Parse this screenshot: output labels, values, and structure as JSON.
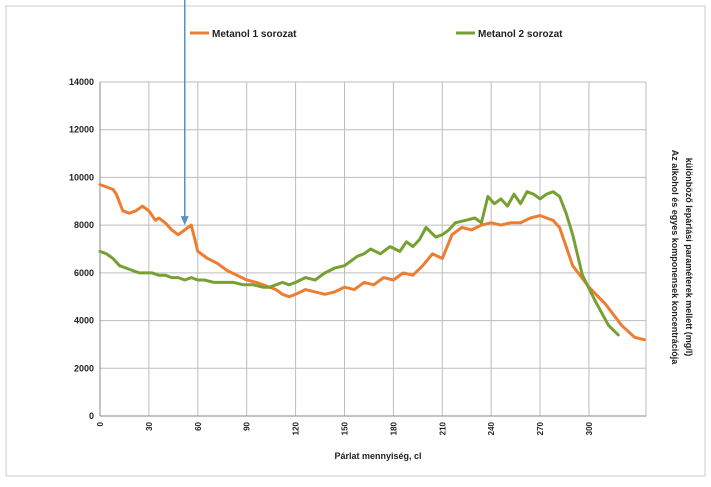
{
  "chart_data": {
    "type": "line",
    "xlabel": "Párlat mennyiség, cl",
    "ylabel": "Az alkohol és egyes komponensek koncentrációja különböző lepárlási paraméterek mellett (mg/l)",
    "ylabel_lines": [
      "Az alkohol és egyes komponensek koncentrációja",
      "különböző lepárlási paraméterek mellett (mg/l)"
    ],
    "xlim": [
      0,
      335
    ],
    "ylim": [
      0,
      14000
    ],
    "x_ticks": [
      0,
      30,
      60,
      90,
      120,
      150,
      180,
      210,
      240,
      270,
      300
    ],
    "y_ticks": [
      0,
      2000,
      4000,
      6000,
      8000,
      10000,
      12000,
      14000
    ],
    "grid": true,
    "legend_position": "top",
    "annotation": {
      "type": "arrow",
      "x": 52,
      "y": 8000
    },
    "colors": {
      "series1": "#ed7d31",
      "series2": "#77a033",
      "arrow": "#5b8fc9",
      "grid": "#bdbdbd"
    },
    "series": [
      {
        "name": "Metanol 1 sorozat",
        "x": [
          0,
          4,
          8,
          10,
          14,
          18,
          22,
          26,
          30,
          34,
          36,
          40,
          44,
          48,
          52,
          56,
          60,
          66,
          72,
          78,
          84,
          90,
          96,
          100,
          104,
          108,
          112,
          116,
          120,
          126,
          132,
          138,
          144,
          150,
          156,
          162,
          168,
          174,
          180,
          186,
          192,
          198,
          204,
          210,
          216,
          222,
          228,
          234,
          240,
          246,
          252,
          258,
          264,
          270,
          274,
          278,
          282,
          290,
          300,
          310,
          320,
          328,
          334
        ],
        "y": [
          9700,
          9600,
          9500,
          9300,
          8600,
          8500,
          8600,
          8800,
          8600,
          8200,
          8300,
          8100,
          7800,
          7600,
          7800,
          8000,
          6900,
          6600,
          6400,
          6100,
          5900,
          5700,
          5600,
          5500,
          5400,
          5300,
          5100,
          5000,
          5100,
          5300,
          5200,
          5100,
          5200,
          5400,
          5300,
          5600,
          5500,
          5800,
          5700,
          6000,
          5900,
          6300,
          6800,
          6600,
          7600,
          7900,
          7800,
          8000,
          8100,
          8000,
          8100,
          8100,
          8300,
          8400,
          8300,
          8200,
          7900,
          6300,
          5400,
          4700,
          3800,
          3300,
          3200
        ]
      },
      {
        "name": "Metanol 2 sorozat",
        "x": [
          0,
          4,
          8,
          12,
          16,
          20,
          24,
          28,
          32,
          36,
          40,
          44,
          48,
          52,
          56,
          60,
          64,
          70,
          76,
          82,
          88,
          94,
          100,
          104,
          108,
          112,
          116,
          120,
          126,
          132,
          138,
          144,
          150,
          154,
          158,
          162,
          166,
          172,
          178,
          184,
          188,
          192,
          196,
          200,
          206,
          210,
          214,
          218,
          224,
          230,
          234,
          238,
          242,
          246,
          250,
          254,
          258,
          262,
          266,
          270,
          274,
          278,
          282,
          286,
          290,
          296,
          304,
          312,
          318
        ],
        "y": [
          6900,
          6800,
          6600,
          6300,
          6200,
          6100,
          6000,
          6000,
          6000,
          5900,
          5900,
          5800,
          5800,
          5700,
          5800,
          5700,
          5700,
          5600,
          5600,
          5600,
          5500,
          5500,
          5400,
          5400,
          5500,
          5600,
          5500,
          5600,
          5800,
          5700,
          6000,
          6200,
          6300,
          6500,
          6700,
          6800,
          7000,
          6800,
          7100,
          6900,
          7300,
          7100,
          7400,
          7900,
          7500,
          7600,
          7800,
          8100,
          8200,
          8300,
          8100,
          9200,
          8900,
          9100,
          8800,
          9300,
          8900,
          9400,
          9300,
          9100,
          9300,
          9400,
          9200,
          8500,
          7600,
          5900,
          4800,
          3800,
          3400
        ]
      }
    ]
  }
}
